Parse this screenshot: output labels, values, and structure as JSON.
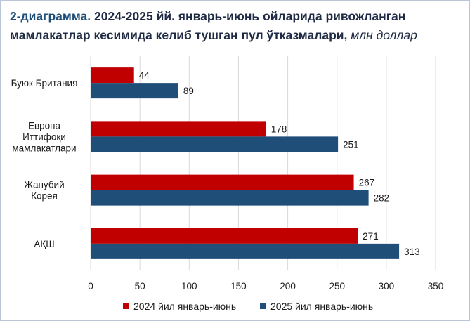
{
  "title": {
    "lead": "2-диаграмма.",
    "main": "2024-2025 йй. январь-июнь ойларида ривожланган мамлакатлар кесимида келиб тушган пул ўтказмалари,",
    "unit": "млн доллар"
  },
  "colors": {
    "series_2024": "#c00000",
    "series_2025": "#1f4e79",
    "grid": "#d9d9d9",
    "text": "#1a1a1a"
  },
  "chart_data": {
    "type": "bar",
    "orientation": "horizontal",
    "categories": [
      [
        "Буюк Британия"
      ],
      [
        "Европа",
        "Иттифоқи",
        "мамлакатлари"
      ],
      [
        "Жанубий",
        "Корея"
      ],
      [
        "АҚШ"
      ]
    ],
    "series": [
      {
        "name": "2024 йил январь-июнь",
        "values": [
          44,
          178,
          267,
          271
        ]
      },
      {
        "name": "2025 йил январь-июнь",
        "values": [
          89,
          251,
          282,
          313
        ]
      }
    ],
    "xlim": [
      0,
      350
    ],
    "xticks": [
      0,
      50,
      100,
      150,
      200,
      250,
      300,
      350
    ],
    "grid": true,
    "legend": "bottom"
  }
}
